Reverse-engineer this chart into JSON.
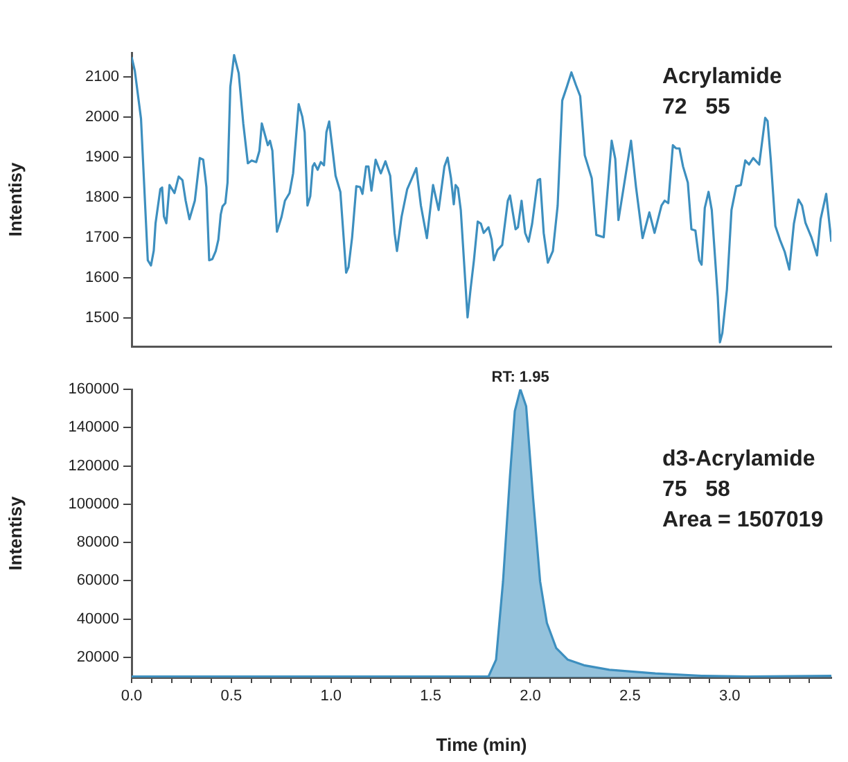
{
  "chart_data": [
    {
      "type": "line",
      "ylabel": "Intentisy",
      "color": "#3d8fbf",
      "xlim": [
        0,
        3.51
      ],
      "ylim": [
        1430,
        2160
      ],
      "yticks": [
        1500,
        1600,
        1700,
        1800,
        1900,
        2000,
        2100
      ],
      "tick_labels": "y",
      "grid": false,
      "legend": false,
      "marker": "none",
      "line_style": "solid",
      "annotations": [
        "Acrylamide",
        "72   55"
      ],
      "x": [
        0,
        0.016,
        0.047,
        0.081,
        0.097,
        0.111,
        0.12,
        0.144,
        0.153,
        0.162,
        0.174,
        0.19,
        0.215,
        0.236,
        0.255,
        0.271,
        0.29,
        0.317,
        0.342,
        0.359,
        0.375,
        0.389,
        0.405,
        0.422,
        0.435,
        0.447,
        0.456,
        0.47,
        0.481,
        0.495,
        0.514,
        0.537,
        0.56,
        0.583,
        0.602,
        0.625,
        0.641,
        0.653,
        0.672,
        0.683,
        0.694,
        0.706,
        0.729,
        0.752,
        0.769,
        0.792,
        0.81,
        0.838,
        0.856,
        0.868,
        0.882,
        0.896,
        0.908,
        0.917,
        0.933,
        0.949,
        0.965,
        0.977,
        0.991,
        1.007,
        1.023,
        1.047,
        1.076,
        1.088,
        1.106,
        1.127,
        1.146,
        1.158,
        1.176,
        1.188,
        1.203,
        1.224,
        1.25,
        1.273,
        1.297,
        1.319,
        1.331,
        1.354,
        1.382,
        1.428,
        1.451,
        1.481,
        1.512,
        1.54,
        1.569,
        1.585,
        1.602,
        1.616,
        1.625,
        1.637,
        1.651,
        1.685,
        1.701,
        1.717,
        1.736,
        1.752,
        1.766,
        1.79,
        1.806,
        1.817,
        1.835,
        1.859,
        1.887,
        1.898,
        1.926,
        1.938,
        1.956,
        1.974,
        1.991,
        2.009,
        2.037,
        2.049,
        2.067,
        2.088,
        2.113,
        2.137,
        2.16,
        2.183,
        2.206,
        2.229,
        2.25,
        2.273,
        2.308,
        2.331,
        2.368,
        2.408,
        2.426,
        2.442,
        2.47,
        2.505,
        2.53,
        2.563,
        2.597,
        2.623,
        2.658,
        2.674,
        2.692,
        2.715,
        2.731,
        2.748,
        2.766,
        2.79,
        2.808,
        2.828,
        2.847,
        2.859,
        2.875,
        2.894,
        2.91,
        2.94,
        2.951,
        2.963,
        2.986,
        3.009,
        3.033,
        3.056,
        3.078,
        3.097,
        3.118,
        3.148,
        3.178,
        3.19,
        3.206,
        3.229,
        3.252,
        3.276,
        3.299,
        3.322,
        3.345,
        3.363,
        3.38,
        3.41,
        3.438,
        3.456,
        3.484,
        3.51
      ],
      "values": [
        2149,
        2115,
        1996,
        1644,
        1631,
        1668,
        1736,
        1821,
        1825,
        1753,
        1736,
        1831,
        1811,
        1852,
        1843,
        1792,
        1746,
        1792,
        1898,
        1894,
        1826,
        1644,
        1647,
        1667,
        1695,
        1758,
        1778,
        1786,
        1837,
        2075,
        2154,
        2109,
        1984,
        1885,
        1892,
        1888,
        1916,
        1984,
        1950,
        1930,
        1941,
        1916,
        1715,
        1752,
        1792,
        1811,
        1860,
        2032,
        2001,
        1962,
        1780,
        1803,
        1877,
        1885,
        1869,
        1888,
        1880,
        1962,
        1989,
        1922,
        1854,
        1814,
        1613,
        1627,
        1701,
        1828,
        1826,
        1809,
        1877,
        1877,
        1817,
        1894,
        1860,
        1890,
        1854,
        1712,
        1667,
        1752,
        1820,
        1873,
        1780,
        1699,
        1831,
        1769,
        1877,
        1899,
        1848,
        1783,
        1831,
        1823,
        1769,
        1502,
        1576,
        1644,
        1740,
        1735,
        1712,
        1726,
        1695,
        1644,
        1669,
        1682,
        1792,
        1805,
        1721,
        1726,
        1792,
        1712,
        1690,
        1735,
        1843,
        1846,
        1712,
        1638,
        1667,
        1780,
        2041,
        2075,
        2111,
        2079,
        2052,
        1905,
        1848,
        1707,
        1701,
        1941,
        1896,
        1744,
        1831,
        1941,
        1826,
        1699,
        1763,
        1712,
        1780,
        1792,
        1786,
        1930,
        1922,
        1922,
        1877,
        1837,
        1721,
        1718,
        1644,
        1633,
        1774,
        1814,
        1769,
        1554,
        1440,
        1463,
        1571,
        1769,
        1828,
        1831,
        1892,
        1882,
        1898,
        1882,
        1998,
        1990,
        1894,
        1729,
        1695,
        1665,
        1621,
        1735,
        1795,
        1780,
        1737,
        1701,
        1656,
        1746,
        1809,
        1690
      ]
    },
    {
      "type": "area",
      "xlabel": "Time (min)",
      "ylabel": "Intentisy",
      "color": "#3d8fbf",
      "xlim": [
        0,
        3.51
      ],
      "ylim": [
        9500,
        160000
      ],
      "yticks": [
        20000,
        40000,
        60000,
        80000,
        100000,
        120000,
        140000,
        160000
      ],
      "grid": false,
      "legend": false,
      "marker": "none",
      "line_style": "solid",
      "xticks": [
        {
          "value": 0,
          "label": "0.0"
        },
        {
          "value": 0.1,
          "label": null
        },
        {
          "value": 0.2,
          "label": null
        },
        {
          "value": 0.3,
          "label": null
        },
        {
          "value": 0.4,
          "label": null
        },
        0.5,
        {
          "value": 0.6,
          "label": null
        },
        {
          "value": 0.7,
          "label": null
        },
        {
          "value": 0.8,
          "label": null
        },
        {
          "value": 0.9,
          "label": null
        },
        {
          "value": 1,
          "label": "1.0"
        },
        {
          "value": 1.1,
          "label": null
        },
        {
          "value": 1.2,
          "label": null
        },
        {
          "value": 1.3,
          "label": null
        },
        {
          "value": 1.4,
          "label": null
        },
        1.5,
        {
          "value": 1.6,
          "label": null
        },
        {
          "value": 1.7,
          "label": null
        },
        {
          "value": 1.8,
          "label": null
        },
        {
          "value": 1.9,
          "label": null
        },
        {
          "value": 2,
          "label": "2.0"
        },
        {
          "value": 2.1,
          "label": null
        },
        {
          "value": 2.2,
          "label": null
        },
        {
          "value": 2.3,
          "label": null
        },
        {
          "value": 2.4,
          "label": null
        },
        2.5,
        {
          "value": 2.6,
          "label": null
        },
        {
          "value": 2.7,
          "label": null
        },
        {
          "value": 2.8,
          "label": null
        },
        {
          "value": 2.9,
          "label": null
        },
        {
          "value": 3,
          "label": "3.0"
        },
        {
          "value": 3.1,
          "label": null
        },
        {
          "value": 3.2,
          "label": null
        },
        {
          "value": 3.3,
          "label": null
        },
        {
          "value": 3.4,
          "label": null
        }
      ],
      "annotations": [
        {
          "text": "RT: 1.95",
          "x": 1.95,
          "y": 160000
        },
        "d3-Acrylamide",
        "75   58",
        "Area = 1507019"
      ],
      "x": [
        0,
        1.79,
        1.828,
        1.863,
        1.898,
        1.922,
        1.95,
        1.979,
        2.014,
        2.049,
        2.083,
        2.13,
        2.188,
        2.269,
        2.396,
        2.627,
        2.859,
        3.09,
        3.51
      ],
      "values": [
        10000,
        10000,
        18800,
        59700,
        115000,
        148600,
        160000,
        151100,
        103000,
        59700,
        38000,
        24800,
        18800,
        15900,
        13500,
        11600,
        10400,
        10000,
        10400
      ]
    }
  ]
}
